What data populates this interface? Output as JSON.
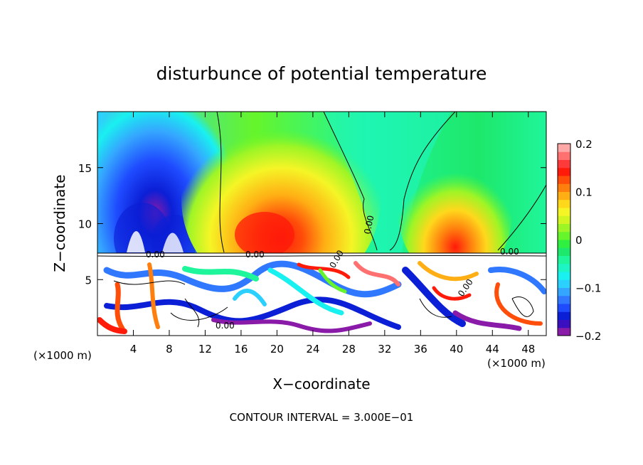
{
  "chart_data": {
    "type": "heatmap",
    "title": "disturbunce of potential temperature",
    "xlabel": "X−coordinate",
    "ylabel": "Z−coordinate",
    "x_unit_left": "(×1000 m)",
    "x_unit_right": "(×1000 m)",
    "xlim": [
      0,
      50
    ],
    "ylim": [
      0,
      20
    ],
    "x_ticks": [
      4,
      8,
      12,
      16,
      20,
      24,
      28,
      32,
      36,
      40,
      44,
      48
    ],
    "y_ticks": [
      5,
      10,
      15
    ],
    "colorbar": {
      "range": [
        -0.2,
        0.2
      ],
      "tick_values": [
        0.2,
        0.1,
        0,
        -0.1,
        -0.2
      ],
      "tick_labels": [
        "0.2",
        "0.1",
        "0",
        "−0.1",
        "−0.2"
      ],
      "colors": [
        "#8a1aa8",
        "#3a0fbf",
        "#0b1fd6",
        "#1f4bff",
        "#2f78ff",
        "#35a6ff",
        "#2cd0ff",
        "#19f0f0",
        "#1df5c4",
        "#1ff59a",
        "#1ee86b",
        "#2ff040",
        "#66f52a",
        "#9ef526",
        "#d2f522",
        "#f5f526",
        "#ffd81c",
        "#ffae14",
        "#ff7f0e",
        "#ff4d0a",
        "#ff1a0a",
        "#ff3a3a",
        "#ff7070",
        "#ffa8a8"
      ]
    },
    "contour_labels": [
      "0.00",
      "0.00",
      "0.00",
      "0.00",
      "0.00",
      "0.00",
      "0.00"
    ],
    "footer": "CONTOUR INTERVAL = 3.000E−01"
  }
}
